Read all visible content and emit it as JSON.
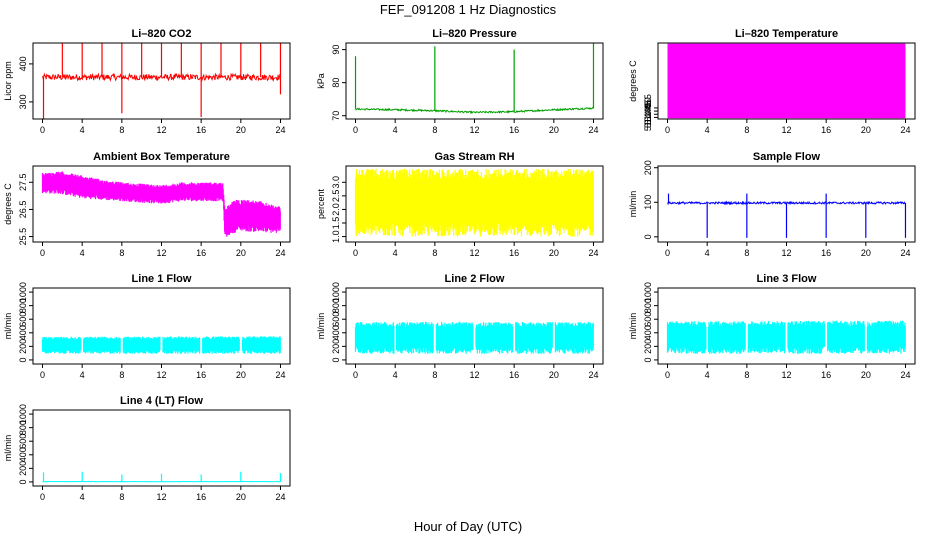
{
  "figure": {
    "title": "FEF_091208  1 Hz Diagnostics",
    "xlabel": "Hour of Day (UTC)"
  },
  "chart_data": [
    {
      "type": "line",
      "title": "Li–820 CO2",
      "ylabel": "Licor ppm",
      "color": "#ff0000",
      "xlim": [
        0,
        24
      ],
      "ylim": [
        255,
        455
      ],
      "xticks": [
        0,
        4,
        8,
        12,
        16,
        20,
        24
      ],
      "yticks": [
        300,
        400
      ],
      "baseline": 365,
      "noise": 8,
      "fill": false,
      "spikes_up": [
        {
          "x": 2,
          "y": 455
        },
        {
          "x": 4,
          "y": 455
        },
        {
          "x": 6,
          "y": 455
        },
        {
          "x": 8,
          "y": 455
        },
        {
          "x": 10,
          "y": 455
        },
        {
          "x": 12,
          "y": 455
        },
        {
          "x": 14,
          "y": 455
        },
        {
          "x": 16,
          "y": 455
        },
        {
          "x": 18,
          "y": 455
        },
        {
          "x": 20,
          "y": 455
        },
        {
          "x": 22,
          "y": 455
        },
        {
          "x": 24,
          "y": 455
        }
      ],
      "spikes_down": [
        {
          "x": 0.1,
          "y": 255
        },
        {
          "x": 8,
          "y": 270
        },
        {
          "x": 16,
          "y": 260
        },
        {
          "x": 24,
          "y": 320
        }
      ]
    },
    {
      "type": "line",
      "title": "Li–820 Pressure",
      "ylabel": "kPa",
      "color": "#00a000",
      "xlim": [
        0,
        24
      ],
      "ylim": [
        69,
        92
      ],
      "xticks": [
        0,
        4,
        8,
        12,
        16,
        20,
        24
      ],
      "yticks": [
        70,
        80,
        90
      ],
      "profile": {
        "x": [
          0,
          4,
          8,
          12,
          16,
          20,
          24
        ],
        "y": [
          72,
          71.8,
          71.5,
          71,
          71.2,
          71.8,
          72.3
        ]
      },
      "noise": 0.25,
      "fill": false,
      "spikes_up": [
        {
          "x": 0,
          "y": 88
        },
        {
          "x": 8,
          "y": 91
        },
        {
          "x": 16,
          "y": 90
        },
        {
          "x": 24,
          "y": 92
        }
      ],
      "spikes_down": []
    },
    {
      "type": "area",
      "title": "Li–820 Temperature",
      "ylabel": "degrees C",
      "color": "#ff00ff",
      "xlim": [
        0,
        24
      ],
      "ylim": [
        51.4375,
        51.5575
      ],
      "xticks": [
        0,
        4,
        8,
        12,
        16,
        20,
        24
      ],
      "yticks": [
        51.44,
        51.445,
        51.45,
        51.455
      ],
      "ytick_labels": [
        "51.440",
        "51.445",
        "51.450",
        "51.455"
      ],
      "band": {
        "low": 51.4387,
        "high": 51.5565
      }
    },
    {
      "type": "line",
      "title": "Ambient Box Temperature",
      "ylabel": "degrees C",
      "color": "#ff00ff",
      "xlim": [
        0,
        24
      ],
      "ylim": [
        25.3,
        28.1
      ],
      "xticks": [
        0,
        4,
        8,
        12,
        16,
        20,
        24
      ],
      "yticks": [
        25.5,
        26.5,
        27.5
      ],
      "envelope": {
        "x": [
          0,
          2,
          4,
          6,
          8,
          10,
          12,
          14,
          16,
          18.2,
          18.4,
          19,
          20,
          22,
          24
        ],
        "high": [
          27.85,
          27.9,
          27.75,
          27.6,
          27.5,
          27.45,
          27.4,
          27.5,
          27.5,
          27.5,
          26.5,
          26.8,
          26.9,
          26.8,
          26.6
        ],
        "low": [
          27.1,
          27.05,
          26.9,
          26.85,
          26.8,
          26.75,
          26.7,
          26.8,
          26.8,
          26.8,
          25.4,
          25.6,
          25.7,
          25.65,
          25.6
        ]
      }
    },
    {
      "type": "line",
      "title": "Gas Stream RH",
      "ylabel": "percent",
      "color": "#ffff00",
      "xlim": [
        0,
        24
      ],
      "ylim": [
        0.8,
        3.6
      ],
      "xticks": [
        0,
        4,
        8,
        12,
        16,
        20,
        24
      ],
      "yticks": [
        1.0,
        1.5,
        2.0,
        2.5,
        3.0
      ],
      "ytick_labels": [
        "1.0",
        "1.5",
        "2.0",
        "2.5",
        "3.0"
      ],
      "envelope": {
        "x": [
          0,
          24
        ],
        "high": [
          3.5,
          3.5
        ],
        "low": [
          1.0,
          1.0
        ]
      }
    },
    {
      "type": "line",
      "title": "Sample Flow",
      "ylabel": "ml/min",
      "color": "#0000ff",
      "xlim": [
        0,
        24
      ],
      "ylim": [
        -15,
        205
      ],
      "xticks": [
        0,
        4,
        8,
        12,
        16,
        20,
        24
      ],
      "yticks": [
        0,
        100,
        200
      ],
      "baseline": 98,
      "noise": 3,
      "fill": false,
      "spikes_up": [
        {
          "x": 0.1,
          "y": 125
        },
        {
          "x": 8,
          "y": 125
        },
        {
          "x": 16,
          "y": 125
        }
      ],
      "spikes_down": [
        {
          "x": 4,
          "y": -3
        },
        {
          "x": 8,
          "y": -3
        },
        {
          "x": 12,
          "y": -3
        },
        {
          "x": 16,
          "y": -3
        },
        {
          "x": 20,
          "y": -3
        },
        {
          "x": 24,
          "y": -3
        }
      ]
    },
    {
      "type": "line",
      "title": "Line 1 Flow",
      "ylabel": "ml/min",
      "color": "#00ffff",
      "xlim": [
        0,
        24
      ],
      "ylim": [
        -60,
        1060
      ],
      "xticks": [
        0,
        4,
        8,
        12,
        16,
        20,
        24
      ],
      "yticks": [
        0,
        200,
        400,
        600,
        800,
        1000
      ],
      "envelope": {
        "x": [
          0,
          24
        ],
        "high": [
          340,
          350
        ],
        "low": [
          90,
          90
        ]
      },
      "gaps": [
        4,
        8,
        12,
        16,
        20
      ]
    },
    {
      "type": "line",
      "title": "Line 2 Flow",
      "ylabel": "ml/min",
      "color": "#00ffff",
      "xlim": [
        0,
        24
      ],
      "ylim": [
        -60,
        1060
      ],
      "xticks": [
        0,
        4,
        8,
        12,
        16,
        20,
        24
      ],
      "yticks": [
        0,
        200,
        400,
        600,
        800,
        1000
      ],
      "envelope": {
        "x": [
          0,
          24
        ],
        "high": [
          560,
          560
        ],
        "low": [
          90,
          90
        ]
      },
      "gaps": [
        4,
        8,
        12,
        16,
        20
      ]
    },
    {
      "type": "line",
      "title": "Line 3 Flow",
      "ylabel": "ml/min",
      "color": "#00ffff",
      "xlim": [
        0,
        24
      ],
      "ylim": [
        -60,
        1060
      ],
      "xticks": [
        0,
        4,
        8,
        12,
        16,
        20,
        24
      ],
      "yticks": [
        0,
        200,
        400,
        600,
        800,
        1000
      ],
      "envelope": {
        "x": [
          0,
          24
        ],
        "high": [
          570,
          580
        ],
        "low": [
          90,
          90
        ]
      },
      "gaps": [
        4,
        8,
        12,
        16,
        20
      ]
    },
    {
      "type": "line",
      "title": "Line 4 (LT) Flow",
      "ylabel": "ml/min",
      "color": "#00ffff",
      "xlim": [
        0,
        24
      ],
      "ylim": [
        -60,
        1060
      ],
      "xticks": [
        0,
        4,
        8,
        12,
        16,
        20,
        24
      ],
      "yticks": [
        0,
        200,
        400,
        600,
        800,
        1000
      ],
      "baseline": 5,
      "noise": 2,
      "fill": false,
      "spikes_up": [
        {
          "x": 0.1,
          "y": 140
        },
        {
          "x": 4,
          "y": 150
        },
        {
          "x": 8,
          "y": 110
        },
        {
          "x": 12,
          "y": 120
        },
        {
          "x": 16,
          "y": 110
        },
        {
          "x": 20,
          "y": 150
        },
        {
          "x": 24,
          "y": 130
        }
      ],
      "spikes_down": []
    }
  ]
}
